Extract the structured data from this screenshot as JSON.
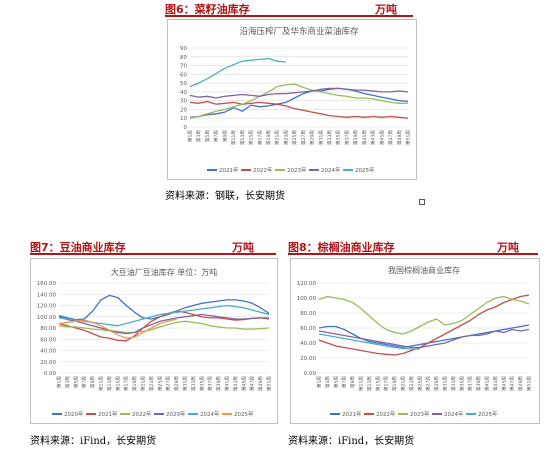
{
  "figures": {
    "fig6": {
      "title": "图6：菜籽油库存",
      "unit": "万吨",
      "source": "资料来源：钢联，长安期货"
    },
    "fig7": {
      "title": "图7：豆油商业库存",
      "unit": "万吨",
      "source": "资料来源：iFind，长安期货"
    },
    "fig8": {
      "title": "图8：棕榈油商业库存",
      "unit": "万吨",
      "source": "资料来源：iFind，长安期货"
    }
  },
  "chart_data": [
    {
      "id": "fig6",
      "type": "line",
      "title": "沿海压榨厂及华东商业菜油库存",
      "ylim": [
        0,
        90
      ],
      "yticks": [
        0,
        10,
        20,
        30,
        40,
        50,
        60,
        70,
        80,
        90
      ],
      "x": [
        "第1周",
        "第3周",
        "第5周",
        "第7周",
        "第9周",
        "第11周",
        "第13周",
        "第15周",
        "第17周",
        "第19周",
        "第21周",
        "第23周",
        "第25周",
        "第27周",
        "第29周",
        "第31周",
        "第33周",
        "第35周",
        "第37周",
        "第39周",
        "第41周",
        "第43周",
        "第45周",
        "第47周",
        "第49周",
        "第51周"
      ],
      "grid": true,
      "legend": "bottom",
      "series": [
        {
          "name": "2021年",
          "color": "#4472c4",
          "values": [
            11,
            12,
            14,
            15,
            17,
            22,
            18,
            25,
            23,
            24,
            26,
            28,
            33,
            38,
            41,
            41,
            43,
            44,
            43,
            41,
            38,
            36,
            34,
            32,
            30,
            29
          ]
        },
        {
          "name": "2022年",
          "color": "#c0504d",
          "values": [
            28,
            27,
            29,
            26,
            27,
            28,
            26,
            27,
            28,
            27,
            26,
            24,
            21,
            19,
            17,
            15,
            13,
            12,
            11,
            12,
            11,
            12,
            11,
            12,
            11,
            10
          ]
        },
        {
          "name": "2023年",
          "color": "#9bbb59",
          "values": [
            10,
            12,
            15,
            18,
            20,
            23,
            26,
            30,
            35,
            40,
            46,
            48,
            49,
            45,
            42,
            40,
            38,
            36,
            35,
            33,
            33,
            32,
            30,
            28,
            27,
            27
          ]
        },
        {
          "name": "2024年",
          "color": "#8064a2",
          "values": [
            36,
            34,
            35,
            33,
            35,
            36,
            37,
            36,
            35,
            37,
            38,
            38,
            39,
            40,
            41,
            43,
            44,
            44,
            43,
            42,
            42,
            41,
            40,
            40,
            41,
            40
          ]
        },
        {
          "name": "2025年",
          "color": "#4bacc6",
          "values": [
            46,
            50,
            55,
            61,
            67,
            71,
            75,
            76,
            77,
            78,
            75,
            74,
            null,
            null,
            null,
            null,
            null,
            null,
            null,
            null,
            null,
            null,
            null,
            null,
            null,
            null
          ]
        }
      ]
    },
    {
      "id": "fig7",
      "type": "line",
      "title": "大豆油厂豆油库存 单位：万吨",
      "ylim": [
        0,
        160
      ],
      "yticks": [
        "0.00",
        "20.00",
        "40.00",
        "60.00",
        "80.00",
        "100.00",
        "120.00",
        "140.00",
        "160.00"
      ],
      "x": [
        "第1周",
        "第3周",
        "第5周",
        "第7周",
        "第9周",
        "第11周",
        "第13周",
        "第15周",
        "第17周",
        "第19周",
        "第21周",
        "第23周",
        "第25周",
        "第27周",
        "第29周",
        "第31周",
        "第33周",
        "第35周",
        "第37周",
        "第39周",
        "第41周",
        "第43周",
        "第45周",
        "第47周",
        "第49周",
        "第51周"
      ],
      "grid": true,
      "legend": "bottom",
      "series": [
        {
          "name": "2020年",
          "color": "#4472c4",
          "values": [
            102,
            98,
            95,
            96,
            110,
            130,
            138,
            134,
            120,
            108,
            98,
            96,
            100,
            104,
            110,
            116,
            120,
            124,
            126,
            128,
            130,
            130,
            128,
            124,
            116,
            106
          ]
        },
        {
          "name": "2021年",
          "color": "#c0504d",
          "values": [
            88,
            84,
            80,
            76,
            70,
            64,
            62,
            58,
            57,
            66,
            80,
            92,
            100,
            106,
            110,
            108,
            104,
            100,
            98,
            98,
            96,
            94,
            95,
            97,
            98,
            96
          ]
        },
        {
          "name": "2022年",
          "color": "#9bbb59",
          "values": [
            84,
            82,
            82,
            80,
            78,
            77,
            75,
            74,
            72,
            72,
            74,
            77,
            82,
            86,
            90,
            92,
            90,
            88,
            84,
            82,
            80,
            80,
            78,
            78,
            79,
            80
          ]
        },
        {
          "name": "2023年",
          "color": "#8064a2",
          "values": [
            100,
            95,
            92,
            88,
            84,
            80,
            76,
            72,
            70,
            72,
            80,
            86,
            92,
            95,
            98,
            100,
            102,
            104,
            102,
            100,
            98,
            96,
            96,
            97,
            98,
            98
          ]
        },
        {
          "name": "2024年",
          "color": "#4bacc6",
          "values": [
            98,
            96,
            94,
            92,
            90,
            88,
            86,
            84,
            88,
            92,
            96,
            100,
            104,
            106,
            108,
            110,
            112,
            114,
            116,
            118,
            120,
            118,
            116,
            112,
            108,
            104
          ]
        },
        {
          "name": "2025年",
          "color": "#f79646",
          "values": [
            88,
            90,
            92,
            94,
            90,
            84,
            76,
            68,
            62,
            64,
            72,
            80,
            88,
            92,
            96,
            null,
            null,
            null,
            null,
            null,
            null,
            null,
            null,
            null,
            null,
            null
          ]
        }
      ]
    },
    {
      "id": "fig8",
      "type": "line",
      "title": "我国棕榈油商业库存",
      "ylim": [
        0,
        120
      ],
      "yticks": [
        "0.00",
        "20.00",
        "40.00",
        "60.00",
        "80.00",
        "100.00",
        "120.00"
      ],
      "x": [
        "第1周",
        "第3周",
        "第5周",
        "第7周",
        "第9周",
        "第11周",
        "第13周",
        "第15周",
        "第17周",
        "第19周",
        "第21周",
        "第23周",
        "第25周",
        "第27周",
        "第29周",
        "第31周",
        "第33周",
        "第35周",
        "第37周",
        "第39周",
        "第41周",
        "第43周",
        "第45周",
        "第47周",
        "第49周",
        "第51周"
      ],
      "grid": true,
      "legend": "bottom",
      "series": [
        {
          "name": "2021年",
          "color": "#4472c4",
          "values": [
            60,
            62,
            62,
            58,
            52,
            46,
            42,
            40,
            38,
            36,
            34,
            36,
            38,
            40,
            42,
            44,
            46,
            48,
            50,
            52,
            54,
            56,
            58,
            60,
            62,
            64
          ]
        },
        {
          "name": "2022年",
          "color": "#c0504d",
          "values": [
            44,
            40,
            36,
            34,
            32,
            30,
            28,
            26,
            25,
            24,
            26,
            30,
            34,
            40,
            46,
            52,
            58,
            64,
            70,
            78,
            84,
            88,
            94,
            98,
            102,
            104
          ]
        },
        {
          "name": "2023年",
          "color": "#9bbb59",
          "values": [
            98,
            102,
            100,
            98,
            94,
            86,
            76,
            66,
            58,
            54,
            52,
            56,
            62,
            68,
            72,
            64,
            66,
            70,
            78,
            86,
            94,
            100,
            102,
            98,
            96,
            92
          ]
        },
        {
          "name": "2024年",
          "color": "#8064a2",
          "values": [
            56,
            54,
            52,
            50,
            48,
            46,
            44,
            42,
            40,
            38,
            36,
            34,
            34,
            36,
            38,
            40,
            44,
            48,
            50,
            50,
            52,
            56,
            54,
            58,
            56,
            58
          ]
        },
        {
          "name": "2025年",
          "color": "#4bacc6",
          "values": [
            52,
            50,
            48,
            46,
            44,
            42,
            40,
            38,
            36,
            34,
            33,
            32,
            32,
            null,
            null,
            null,
            null,
            null,
            null,
            null,
            null,
            null,
            null,
            null,
            null,
            null
          ]
        }
      ]
    }
  ]
}
